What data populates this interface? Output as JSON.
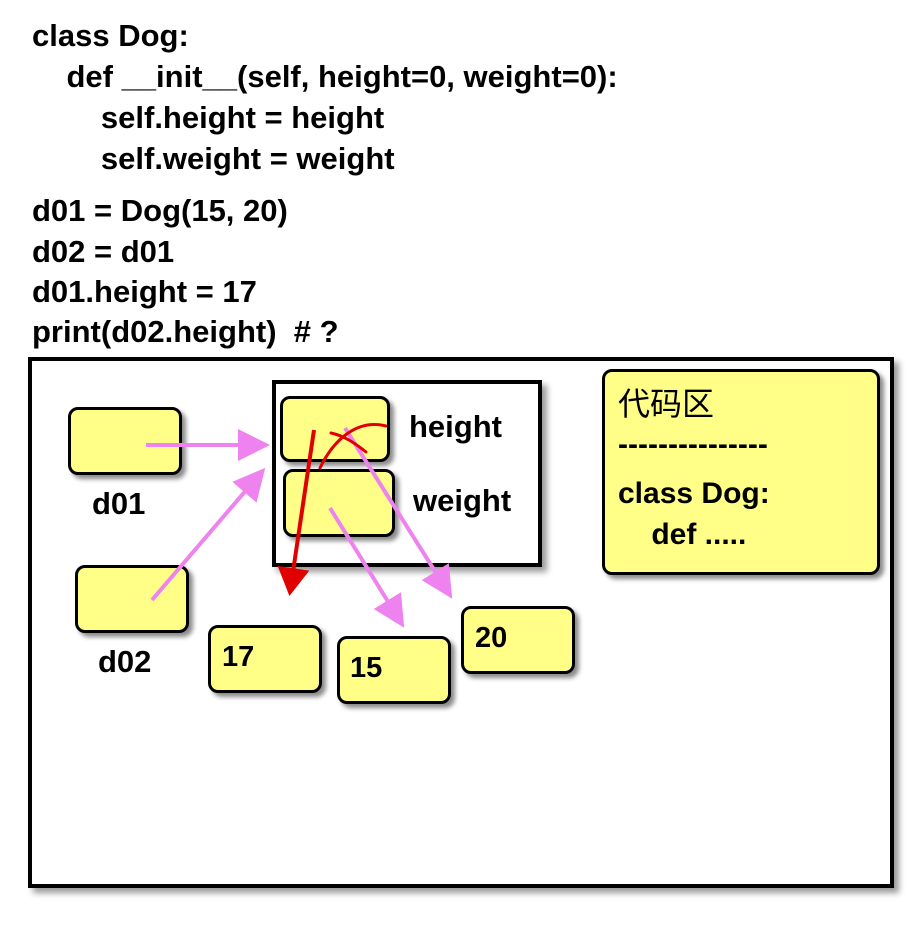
{
  "code": {
    "lines": [
      "class Dog:",
      "    def __init__(self, height=0, weight=0):",
      "        self.height = height",
      "        self.weight = weight",
      "d01 = Dog(15, 20)",
      "d02 = d01",
      "d01.height = 17",
      "print(d02.height)  # ?"
    ]
  },
  "diagram": {
    "variables": {
      "d01": "d01",
      "d02": "d02"
    },
    "attributes": {
      "height": "height",
      "weight": "weight"
    },
    "values": {
      "v17": "17",
      "v15": "15",
      "v20": "20"
    },
    "code_area": {
      "title": "代码区",
      "separator": "---------------",
      "line1": "class Dog:",
      "line2": "    def ....."
    },
    "colors": {
      "box_fill": "#ffff88",
      "pointer": "#ee82ee",
      "new_pointer": "#e00000",
      "cross": "#e00000"
    }
  }
}
